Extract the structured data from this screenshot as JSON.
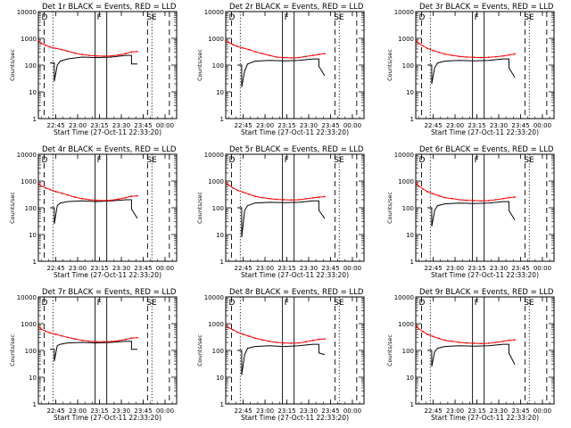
{
  "figure": {
    "ylabel": "Counts/sec",
    "xlabel": "Start Time (27-Oct-11 22:33:20)",
    "x_ticks": [
      "22:45",
      "23:00",
      "23:15",
      "23:30",
      "23:45",
      "00:00"
    ],
    "y_ticks": [
      "1",
      "10",
      "100",
      "1000",
      "10000"
    ],
    "markers": [
      "D",
      "F",
      "SE"
    ],
    "colors": {
      "events": "#000000",
      "lld": "#ff0000"
    }
  },
  "chart_data": [
    {
      "type": "line",
      "title": "Det 1r BLACK = Events, RED = LLD",
      "x_unit": "minutes after 22:33:20",
      "y_scale": "log",
      "ylim": [
        1,
        10000
      ],
      "series": [
        {
          "name": "Events",
          "color": "#000000",
          "x": [
            8,
            11,
            11,
            13,
            15,
            20,
            30,
            40,
            50,
            60,
            64,
            64,
            68
          ],
          "y": [
            120,
            120,
            25,
            100,
            140,
            170,
            200,
            190,
            200,
            230,
            230,
            110,
            110
          ]
        },
        {
          "name": "LLD",
          "color": "#ff0000",
          "x": [
            0,
            2,
            5,
            8,
            12,
            16,
            20,
            25,
            30,
            35,
            40,
            45,
            50,
            55,
            60,
            64,
            68
          ],
          "y": [
            800,
            650,
            550,
            480,
            420,
            380,
            330,
            280,
            250,
            230,
            220,
            215,
            220,
            240,
            270,
            310,
            320
          ]
        }
      ],
      "vlines": {
        "dashed": [
          4,
          75,
          90
        ],
        "dotted": [
          10,
          78
        ],
        "solid": [
          39,
          47
        ]
      }
    },
    {
      "type": "line",
      "title": "Det 2r BLACK = Events, RED = LLD",
      "x_unit": "minutes after 22:33:20",
      "y_scale": "log",
      "ylim": [
        1,
        10000
      ],
      "series": [
        {
          "name": "Events",
          "color": "#000000",
          "x": [
            8,
            11,
            11,
            13,
            15,
            20,
            30,
            40,
            50,
            60,
            64,
            64,
            68
          ],
          "y": [
            100,
            100,
            15,
            60,
            110,
            140,
            150,
            145,
            150,
            170,
            170,
            90,
            40
          ]
        },
        {
          "name": "LLD",
          "color": "#ff0000",
          "x": [
            0,
            2,
            5,
            8,
            12,
            16,
            20,
            25,
            30,
            35,
            40,
            45,
            50,
            55,
            60,
            64,
            68
          ],
          "y": [
            850,
            700,
            580,
            500,
            430,
            380,
            320,
            270,
            230,
            200,
            190,
            185,
            190,
            210,
            230,
            250,
            270
          ]
        }
      ],
      "vlines": {
        "dashed": [
          4,
          75,
          90
        ],
        "dotted": [
          10,
          78
        ],
        "solid": [
          39,
          47
        ]
      }
    },
    {
      "type": "line",
      "title": "Det 3r BLACK = Events, RED = LLD",
      "x_unit": "minutes after 22:33:20",
      "y_scale": "log",
      "ylim": [
        1,
        10000
      ],
      "series": [
        {
          "name": "Events",
          "color": "#000000",
          "x": [
            8,
            11,
            11,
            13,
            15,
            20,
            30,
            40,
            50,
            60,
            64,
            64,
            68
          ],
          "y": [
            100,
            100,
            20,
            80,
            120,
            140,
            150,
            145,
            150,
            170,
            170,
            80,
            35
          ]
        },
        {
          "name": "LLD",
          "color": "#ff0000",
          "x": [
            0,
            2,
            5,
            8,
            12,
            16,
            20,
            25,
            30,
            35,
            40,
            45,
            50,
            55,
            60,
            64,
            68
          ],
          "y": [
            850,
            650,
            520,
            420,
            350,
            300,
            260,
            230,
            210,
            200,
            195,
            190,
            195,
            205,
            220,
            240,
            260
          ]
        }
      ],
      "vlines": {
        "dashed": [
          4,
          75,
          90
        ],
        "dotted": [
          10,
          78
        ],
        "solid": [
          39,
          47
        ]
      }
    },
    {
      "type": "line",
      "title": "Det 4r BLACK = Events, RED = LLD",
      "x_unit": "minutes after 22:33:20",
      "y_scale": "log",
      "ylim": [
        1,
        10000
      ],
      "series": [
        {
          "name": "Events",
          "color": "#000000",
          "x": [
            8,
            11,
            11,
            13,
            15,
            20,
            30,
            40,
            50,
            60,
            64,
            64,
            68
          ],
          "y": [
            100,
            100,
            25,
            120,
            150,
            170,
            180,
            170,
            180,
            200,
            200,
            90,
            40
          ]
        },
        {
          "name": "LLD",
          "color": "#ff0000",
          "x": [
            0,
            2,
            5,
            8,
            12,
            16,
            20,
            25,
            30,
            35,
            40,
            45,
            50,
            55,
            60,
            64,
            68
          ],
          "y": [
            800,
            650,
            550,
            480,
            400,
            350,
            300,
            250,
            220,
            200,
            190,
            185,
            190,
            210,
            240,
            270,
            280
          ]
        }
      ],
      "vlines": {
        "dashed": [
          4,
          75,
          90
        ],
        "dotted": [
          10,
          78
        ],
        "solid": [
          39,
          47
        ]
      }
    },
    {
      "type": "line",
      "title": "Det 5r BLACK = Events, RED = LLD",
      "x_unit": "minutes after 22:33:20",
      "y_scale": "log",
      "ylim": [
        1,
        10000
      ],
      "series": [
        {
          "name": "Events",
          "color": "#000000",
          "x": [
            8,
            11,
            11,
            13,
            15,
            20,
            30,
            40,
            50,
            60,
            64,
            64,
            68
          ],
          "y": [
            100,
            100,
            8,
            80,
            120,
            150,
            160,
            155,
            160,
            180,
            180,
            80,
            40
          ]
        },
        {
          "name": "LLD",
          "color": "#ff0000",
          "x": [
            0,
            2,
            5,
            8,
            12,
            16,
            20,
            25,
            30,
            35,
            40,
            45,
            50,
            55,
            60,
            64,
            68
          ],
          "y": [
            850,
            700,
            550,
            450,
            380,
            320,
            270,
            240,
            220,
            205,
            200,
            195,
            200,
            215,
            235,
            250,
            260
          ]
        }
      ],
      "vlines": {
        "dashed": [
          4,
          75,
          90
        ],
        "dotted": [
          10,
          78
        ],
        "solid": [
          39,
          47
        ]
      }
    },
    {
      "type": "line",
      "title": "Det 6r BLACK = Events, RED = LLD",
      "x_unit": "minutes after 22:33:20",
      "y_scale": "log",
      "ylim": [
        1,
        10000
      ],
      "series": [
        {
          "name": "Events",
          "color": "#000000",
          "x": [
            8,
            11,
            11,
            13,
            15,
            20,
            30,
            40,
            50,
            60,
            64,
            64,
            68
          ],
          "y": [
            100,
            100,
            20,
            80,
            120,
            140,
            150,
            145,
            150,
            170,
            170,
            80,
            35
          ]
        },
        {
          "name": "LLD",
          "color": "#ff0000",
          "x": [
            0,
            2,
            5,
            8,
            12,
            16,
            20,
            25,
            30,
            35,
            40,
            45,
            50,
            55,
            60,
            64,
            68
          ],
          "y": [
            850,
            650,
            500,
            400,
            330,
            280,
            240,
            220,
            200,
            190,
            185,
            180,
            185,
            200,
            220,
            240,
            250
          ]
        }
      ],
      "vlines": {
        "dashed": [
          4,
          75,
          90
        ],
        "dotted": [
          10,
          78
        ],
        "solid": [
          39,
          47
        ]
      }
    },
    {
      "type": "line",
      "title": "Det 7r BLACK = Events, RED = LLD",
      "x_unit": "minutes after 22:33:20",
      "y_scale": "log",
      "ylim": [
        1,
        10000
      ],
      "series": [
        {
          "name": "Events",
          "color": "#000000",
          "x": [
            8,
            11,
            11,
            13,
            15,
            20,
            30,
            40,
            50,
            60,
            64,
            64,
            68
          ],
          "y": [
            110,
            110,
            40,
            150,
            170,
            190,
            200,
            190,
            200,
            220,
            220,
            110,
            110
          ]
        },
        {
          "name": "LLD",
          "color": "#ff0000",
          "x": [
            0,
            2,
            5,
            8,
            12,
            16,
            20,
            25,
            30,
            35,
            40,
            45,
            50,
            55,
            60,
            64,
            68
          ],
          "y": [
            750,
            620,
            520,
            450,
            400,
            350,
            310,
            270,
            240,
            220,
            210,
            210,
            215,
            230,
            260,
            290,
            300
          ]
        }
      ],
      "vlines": {
        "dashed": [
          4,
          75,
          90
        ],
        "dotted": [
          10,
          78
        ],
        "solid": [
          39,
          47
        ]
      }
    },
    {
      "type": "line",
      "title": "Det 8r BLACK = Events, RED = LLD",
      "x_unit": "minutes after 22:33:20",
      "y_scale": "log",
      "ylim": [
        1,
        10000
      ],
      "series": [
        {
          "name": "Events",
          "color": "#000000",
          "x": [
            8,
            11,
            11,
            13,
            15,
            20,
            30,
            40,
            50,
            60,
            64,
            64,
            68
          ],
          "y": [
            100,
            100,
            12,
            70,
            120,
            140,
            150,
            140,
            150,
            170,
            170,
            80,
            70
          ]
        },
        {
          "name": "LLD",
          "color": "#ff0000",
          "x": [
            0,
            2,
            5,
            8,
            12,
            16,
            20,
            25,
            30,
            35,
            40,
            45,
            50,
            55,
            60,
            64,
            68
          ],
          "y": [
            850,
            700,
            580,
            480,
            400,
            340,
            290,
            250,
            220,
            200,
            190,
            185,
            190,
            210,
            240,
            260,
            270
          ]
        }
      ],
      "vlines": {
        "dashed": [
          4,
          75,
          90
        ],
        "dotted": [
          10,
          78
        ],
        "solid": [
          39,
          47
        ]
      }
    },
    {
      "type": "line",
      "title": "Det 9r BLACK = Events, RED = LLD",
      "x_unit": "minutes after 22:33:20",
      "y_scale": "log",
      "ylim": [
        1,
        10000
      ],
      "series": [
        {
          "name": "Events",
          "color": "#000000",
          "x": [
            8,
            11,
            11,
            13,
            15,
            20,
            30,
            40,
            50,
            60,
            64,
            64,
            68
          ],
          "y": [
            100,
            100,
            25,
            90,
            120,
            140,
            150,
            145,
            150,
            170,
            170,
            80,
            30
          ]
        },
        {
          "name": "LLD",
          "color": "#ff0000",
          "x": [
            0,
            2,
            5,
            8,
            12,
            16,
            20,
            25,
            30,
            35,
            40,
            45,
            50,
            55,
            60,
            64,
            68
          ],
          "y": [
            850,
            650,
            500,
            400,
            330,
            280,
            240,
            220,
            200,
            190,
            185,
            180,
            185,
            200,
            220,
            240,
            250
          ]
        }
      ],
      "vlines": {
        "dashed": [
          4,
          75,
          90
        ],
        "dotted": [
          10,
          78
        ],
        "solid": [
          39,
          47
        ]
      }
    }
  ]
}
